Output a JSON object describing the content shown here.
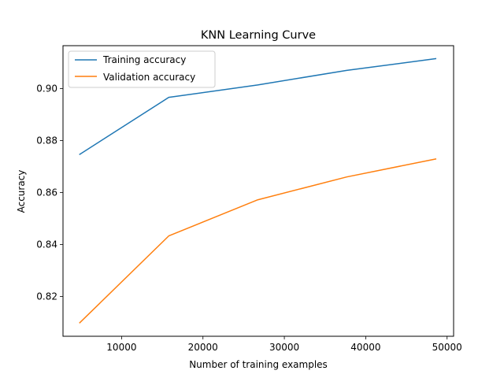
{
  "chart_data": {
    "type": "line",
    "title": "KNN Learning Curve",
    "xlabel": "Number of training examples",
    "ylabel": "Accuracy",
    "xlim": [
      2800,
      50800
    ],
    "ylim": [
      0.8047,
      0.9165
    ],
    "xticks": [
      10000,
      20000,
      30000,
      40000,
      50000
    ],
    "xtick_labels": [
      "10000",
      "20000",
      "30000",
      "40000",
      "50000"
    ],
    "yticks": [
      0.82,
      0.84,
      0.86,
      0.88,
      0.9
    ],
    "ytick_labels": [
      "0.82",
      "0.84",
      "0.86",
      "0.88",
      "0.90"
    ],
    "grid": false,
    "legend_position": "upper-left",
    "x": [
      4860,
      15795,
      26730,
      37665,
      48600
    ],
    "series": [
      {
        "name": "Training accuracy",
        "color": "#1f77b4",
        "values": [
          0.8747,
          0.8966,
          0.9014,
          0.907,
          0.9115
        ]
      },
      {
        "name": "Validation accuracy",
        "color": "#ff7f0e",
        "values": [
          0.8099,
          0.8433,
          0.8572,
          0.866,
          0.8729
        ]
      }
    ]
  }
}
